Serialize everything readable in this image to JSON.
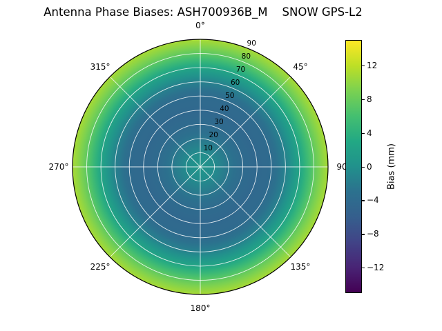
{
  "title": "Antenna Phase Biases: ASH700936B_M    SNOW GPS-L2",
  "chart_data": {
    "type": "heatmap",
    "projection": "polar",
    "title": "Antenna Phase Biases: ASH700936B_M    SNOW GPS-L2",
    "angular_axis": "azimuth, 0 deg at top, clockwise",
    "angular_tick_labels": [
      "0°",
      "45°",
      "90",
      "135°",
      "180°",
      "225°",
      "270°",
      "315°"
    ],
    "angular_tick_degrees": [
      0,
      45,
      90,
      135,
      180,
      225,
      270,
      315
    ],
    "radial_axis": "zenith angle (deg)",
    "radial_range": [
      0,
      90
    ],
    "radial_tick_labels": [
      "10",
      "20",
      "30",
      "40",
      "50",
      "60",
      "70",
      "80",
      "90"
    ],
    "grid": true,
    "colormap": "viridis",
    "colorbar": {
      "label": "Bias (mm)",
      "tick_labels": [
        "12",
        "8",
        "4",
        "0",
        "−4",
        "−8",
        "−12"
      ],
      "ticks": [
        12,
        8,
        4,
        0,
        -4,
        -8,
        -12
      ],
      "vmin": -15,
      "vmax": 15
    },
    "radial_profile": {
      "description": "bias is approximately azimuth-independent; values listed by zenith angle",
      "zenith_deg": [
        0,
        10,
        20,
        30,
        40,
        50,
        60,
        65,
        70,
        75,
        80,
        85,
        90
      ],
      "bias_mm": [
        0.5,
        -0.5,
        -2.5,
        -4.0,
        -4.5,
        -4.0,
        -1.5,
        0.5,
        2.5,
        5.0,
        7.5,
        9.5,
        11.0
      ]
    }
  }
}
